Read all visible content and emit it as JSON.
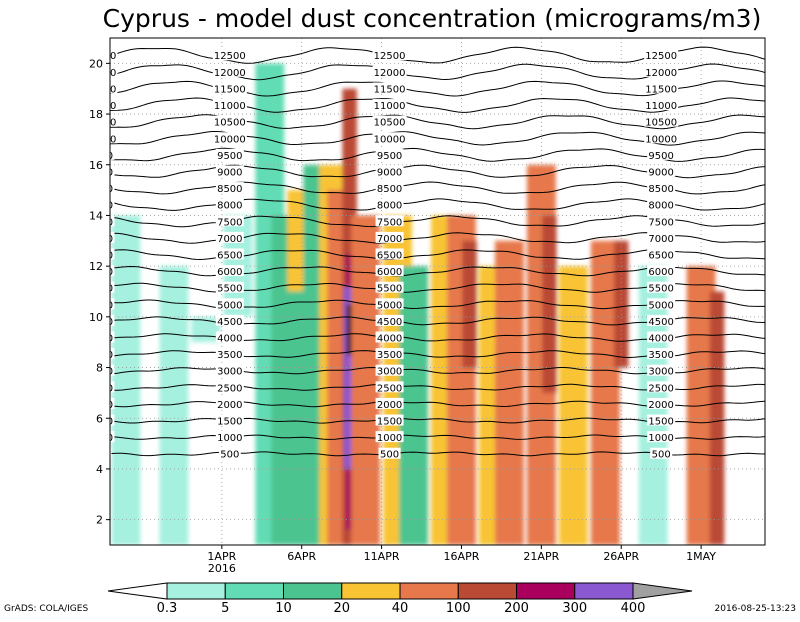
{
  "chart_data": {
    "type": "heatmap",
    "title": "Cyprus - model dust concentration (micrograms/m3)",
    "xlabel": "",
    "ylabel": "",
    "x_tick_labels": [
      {
        "label": "1APR",
        "sub": "2016",
        "day": 1
      },
      {
        "label": "6APR",
        "sub": "",
        "day": 6
      },
      {
        "label": "11APR",
        "sub": "",
        "day": 11
      },
      {
        "label": "16APR",
        "sub": "",
        "day": 16
      },
      {
        "label": "21APR",
        "sub": "",
        "day": 21
      },
      {
        "label": "26APR",
        "sub": "",
        "day": 26
      },
      {
        "label": "1MAY",
        "sub": "",
        "day": 31
      }
    ],
    "xlim": [
      -6,
      35
    ],
    "ylim": [
      1,
      21
    ],
    "y_ticks": [
      "2",
      "4",
      "6",
      "8",
      "10",
      "12",
      "14",
      "16",
      "18",
      "20"
    ],
    "grid": true,
    "contour_levels": [
      "500",
      "1000",
      "1500",
      "2000",
      "2500",
      "3000",
      "3500",
      "4000",
      "4500",
      "5000",
      "5500",
      "6000",
      "6500",
      "7000",
      "7500",
      "8000",
      "8500",
      "9000",
      "9500",
      "10000",
      "10500",
      "11000",
      "11500",
      "12000",
      "12500"
    ],
    "colorbar": {
      "levels": [
        "0.3",
        "5",
        "10",
        "20",
        "40",
        "100",
        "200",
        "300",
        "400"
      ],
      "colors": [
        "#a6f0e0",
        "#62dcb4",
        "#4cc490",
        "#f8c434",
        "#e6784c",
        "#ba4a34",
        "#a8005c",
        "#8a58d0"
      ],
      "below_color": "#ffffff",
      "above_color": "#a0a0a0",
      "placement": "bottom"
    },
    "series": [
      {
        "name": "dust",
        "values": [
          {
            "day": -5,
            "bottom": 1,
            "top": 14,
            "level": 1
          },
          {
            "day": -2,
            "bottom": 1,
            "top": 12,
            "level": 1
          },
          {
            "day": 0,
            "bottom": 9,
            "top": 10,
            "level": 1
          },
          {
            "day": 2,
            "bottom": 10,
            "top": 14,
            "level": 1
          },
          {
            "day": 4,
            "bottom": 1,
            "top": 20,
            "level": 2
          },
          {
            "day": 5,
            "bottom": 1,
            "top": 14,
            "level": 3
          },
          {
            "day": 6,
            "bottom": 1,
            "top": 14,
            "level": 3
          },
          {
            "day": 6,
            "bottom": 11,
            "top": 15,
            "level": 4
          },
          {
            "day": 7,
            "bottom": 1,
            "top": 16,
            "level": 3
          },
          {
            "day": 8,
            "bottom": 1,
            "top": 16,
            "level": 4
          },
          {
            "day": 8.5,
            "bottom": 1,
            "top": 15,
            "level": 5
          },
          {
            "day": 9,
            "bottom": 1,
            "top": 19,
            "level": 6
          },
          {
            "day": 9.2,
            "bottom": 1.6,
            "top": 12.5,
            "level": 7
          },
          {
            "day": 9.1,
            "bottom": 4,
            "top": 11.2,
            "level": 8
          },
          {
            "day": 9.3,
            "bottom": 8.5,
            "top": 10.5,
            "level": 9
          },
          {
            "day": 10,
            "bottom": 1,
            "top": 14,
            "level": 5
          },
          {
            "day": 12,
            "bottom": 1,
            "top": 14,
            "level": 4
          },
          {
            "day": 13,
            "bottom": 1,
            "top": 12,
            "level": 3
          },
          {
            "day": 15,
            "bottom": 1,
            "top": 14,
            "level": 4
          },
          {
            "day": 16,
            "bottom": 1,
            "top": 14,
            "level": 5
          },
          {
            "day": 16.5,
            "bottom": 8,
            "top": 13,
            "level": 6
          },
          {
            "day": 18,
            "bottom": 1,
            "top": 12,
            "level": 4
          },
          {
            "day": 19,
            "bottom": 1,
            "top": 13,
            "level": 5
          },
          {
            "day": 21,
            "bottom": 1,
            "top": 16,
            "level": 5
          },
          {
            "day": 21.5,
            "bottom": 7,
            "top": 14,
            "level": 6
          },
          {
            "day": 23,
            "bottom": 1,
            "top": 12,
            "level": 4
          },
          {
            "day": 25,
            "bottom": 1,
            "top": 13,
            "level": 5
          },
          {
            "day": 26,
            "bottom": 8,
            "top": 13,
            "level": 6
          },
          {
            "day": 28,
            "bottom": 1,
            "top": 12,
            "level": 1
          },
          {
            "day": 31,
            "bottom": 1,
            "top": 12,
            "level": 5
          },
          {
            "day": 32,
            "bottom": 1,
            "top": 11,
            "level": 6
          }
        ]
      }
    ]
  },
  "footer": {
    "left": "GrADS: COLA/IGES",
    "right": "2016-08-25-13:23"
  }
}
